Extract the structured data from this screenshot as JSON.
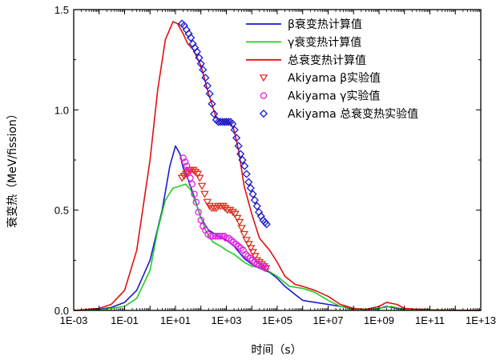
{
  "chart_data": {
    "type": "line",
    "title": "",
    "xlabel": "时间（s）",
    "ylabel": "衰变热（MeV/fission）",
    "x_scale": "log",
    "xlim": [
      0.001,
      10000000000000.0
    ],
    "ylim": [
      0,
      1.5
    ],
    "x_ticks": [
      {
        "value": 0.001,
        "label": "1E-03"
      },
      {
        "value": 0.1,
        "label": "1E-01"
      },
      {
        "value": 10,
        "label": "1E+01"
      },
      {
        "value": 1000,
        "label": "1E+03"
      },
      {
        "value": 100000,
        "label": "1E+05"
      },
      {
        "value": 10000000,
        "label": "1E+07"
      },
      {
        "value": 1000000000,
        "label": "1E+09"
      },
      {
        "value": 100000000000,
        "label": "1E+11"
      },
      {
        "value": 10000000000000,
        "label": "1E+13"
      }
    ],
    "y_ticks": [
      {
        "value": 0.0,
        "label": "0.0"
      },
      {
        "value": 0.5,
        "label": "0.5"
      },
      {
        "value": 1.0,
        "label": "1.0"
      },
      {
        "value": 1.5,
        "label": "1.5"
      }
    ],
    "legend_position": "top-right",
    "series": [
      {
        "name": "β衰变热计算值",
        "kind": "line",
        "color": "#1a1acc",
        "x": [
          0.001,
          0.01,
          0.03,
          0.1,
          0.3,
          1,
          3,
          6,
          10,
          15,
          20,
          30,
          50,
          100,
          200,
          500,
          1000,
          2000,
          5000,
          10000,
          20000,
          50000,
          100000,
          200000,
          500000,
          1000000,
          3000000,
          10000000,
          30000000,
          100000000,
          300000000,
          1000000000,
          2000000000,
          5000000000,
          10000000000,
          100000000000,
          10000000000000
        ],
        "y": [
          0.0,
          0.005,
          0.015,
          0.04,
          0.1,
          0.25,
          0.5,
          0.72,
          0.82,
          0.78,
          0.71,
          0.66,
          0.58,
          0.46,
          0.4,
          0.37,
          0.35,
          0.32,
          0.26,
          0.23,
          0.21,
          0.19,
          0.16,
          0.12,
          0.08,
          0.05,
          0.04,
          0.03,
          0.02,
          0.01,
          0.005,
          0.01,
          0.02,
          0.01,
          0.005,
          0.001,
          0.0
        ]
      },
      {
        "name": "γ衰变热计算值",
        "kind": "line",
        "color": "#22cc22",
        "x": [
          0.001,
          0.01,
          0.1,
          0.3,
          1,
          2,
          4,
          8,
          15,
          25,
          40,
          80,
          150,
          300,
          600,
          1000,
          2000,
          5000,
          10000,
          30000,
          100000,
          300000,
          1000000,
          3000000,
          10000000,
          30000000,
          100000000,
          1000000000,
          3000000000,
          10000000000,
          10000000000000
        ],
        "y": [
          0.0,
          0.002,
          0.02,
          0.06,
          0.2,
          0.4,
          0.55,
          0.61,
          0.62,
          0.63,
          0.6,
          0.5,
          0.4,
          0.34,
          0.32,
          0.3,
          0.28,
          0.24,
          0.22,
          0.21,
          0.17,
          0.12,
          0.11,
          0.09,
          0.05,
          0.02,
          0.005,
          0.01,
          0.02,
          0.005,
          0.0
        ]
      },
      {
        "name": "总衰变热计算值",
        "kind": "line",
        "color": "#e01010",
        "x": [
          0.001,
          0.01,
          0.03,
          0.1,
          0.3,
          1,
          2,
          4,
          8,
          12,
          20,
          30,
          50,
          100,
          200,
          400,
          700,
          1000,
          1500,
          2000,
          3000,
          5000,
          10000,
          20000,
          50000,
          100000,
          200000,
          500000,
          1000000,
          3000000,
          10000000,
          30000000,
          100000000,
          300000000,
          1000000000,
          2000000000,
          5000000000,
          10000000000,
          100000000000,
          10000000000000
        ],
        "y": [
          0.0,
          0.01,
          0.03,
          0.1,
          0.3,
          0.75,
          1.1,
          1.35,
          1.44,
          1.43,
          1.38,
          1.33,
          1.3,
          1.22,
          1.08,
          0.96,
          0.95,
          0.94,
          0.93,
          0.9,
          0.8,
          0.62,
          0.48,
          0.36,
          0.3,
          0.24,
          0.17,
          0.13,
          0.12,
          0.1,
          0.07,
          0.03,
          0.01,
          0.005,
          0.02,
          0.04,
          0.03,
          0.01,
          0.002,
          0.0
        ]
      },
      {
        "name": "Akiyama β实验值",
        "kind": "marker",
        "marker": "triangle-down",
        "color": "#e03020",
        "x": [
          18,
          22,
          26,
          30,
          35,
          40,
          50,
          60,
          75,
          90,
          110,
          140,
          180,
          220,
          270,
          330,
          400,
          480,
          600,
          750,
          900,
          1100,
          1400,
          1800,
          2200,
          2700,
          3300,
          4000,
          5000,
          6200,
          7600,
          9200,
          11000,
          13500,
          16000,
          20000,
          25000,
          30000,
          36000
        ],
        "y": [
          0.66,
          0.67,
          0.68,
          0.69,
          0.7,
          0.7,
          0.7,
          0.69,
          0.68,
          0.66,
          0.62,
          0.58,
          0.54,
          0.52,
          0.51,
          0.51,
          0.51,
          0.52,
          0.52,
          0.52,
          0.51,
          0.5,
          0.5,
          0.49,
          0.48,
          0.46,
          0.44,
          0.41,
          0.38,
          0.35,
          0.33,
          0.31,
          0.29,
          0.27,
          0.25,
          0.24,
          0.23,
          0.22,
          0.21
        ]
      },
      {
        "name": "Akiyama γ实验值",
        "kind": "marker",
        "marker": "circle",
        "color": "#e020e0",
        "x": [
          20,
          24,
          28,
          33,
          38,
          45,
          55,
          65,
          80,
          100,
          120,
          150,
          190,
          240,
          300,
          370,
          450,
          550,
          680,
          830,
          1000,
          1250,
          1550,
          1900,
          2400,
          3000,
          3700,
          4600,
          5700,
          7000,
          8600,
          10500,
          13000,
          16000,
          19500,
          24000,
          29000,
          35000
        ],
        "y": [
          0.76,
          0.74,
          0.72,
          0.69,
          0.66,
          0.63,
          0.58,
          0.54,
          0.49,
          0.45,
          0.42,
          0.4,
          0.38,
          0.37,
          0.37,
          0.37,
          0.37,
          0.37,
          0.37,
          0.37,
          0.36,
          0.36,
          0.35,
          0.34,
          0.33,
          0.32,
          0.31,
          0.3,
          0.28,
          0.27,
          0.26,
          0.25,
          0.24,
          0.23,
          0.23,
          0.22,
          0.22,
          0.21
        ]
      },
      {
        "name": "Akiyama 总衰变热实验值",
        "kind": "marker",
        "marker": "diamond",
        "color": "#1a1acc",
        "x": [
          18,
          22,
          27,
          33,
          40,
          48,
          58,
          70,
          85,
          100,
          120,
          150,
          180,
          220,
          270,
          330,
          400,
          480,
          580,
          700,
          850,
          1000,
          1200,
          1450,
          1750,
          2100,
          2500,
          3000,
          3600,
          4300,
          5200,
          6200,
          7500,
          9000,
          11000,
          13000,
          16000,
          19000,
          23000,
          28000,
          33000,
          38000
        ],
        "y": [
          1.43,
          1.42,
          1.4,
          1.38,
          1.36,
          1.33,
          1.31,
          1.29,
          1.26,
          1.23,
          1.2,
          1.16,
          1.12,
          1.08,
          1.03,
          0.98,
          0.95,
          0.94,
          0.94,
          0.94,
          0.94,
          0.94,
          0.94,
          0.94,
          0.93,
          0.9,
          0.86,
          0.82,
          0.78,
          0.75,
          0.72,
          0.68,
          0.64,
          0.61,
          0.58,
          0.55,
          0.52,
          0.49,
          0.47,
          0.45,
          0.44,
          0.43
        ]
      }
    ]
  }
}
